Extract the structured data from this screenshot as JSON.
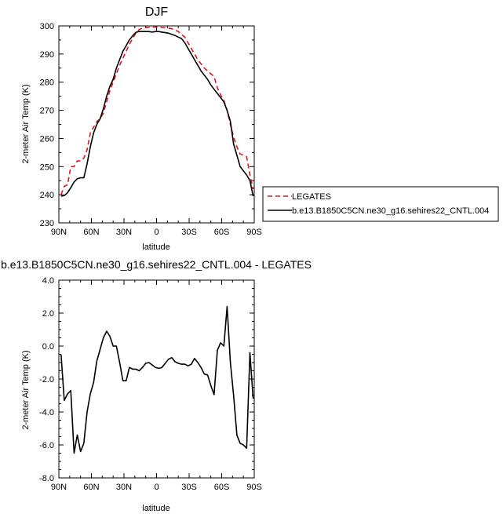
{
  "chart_data": [
    {
      "type": "line",
      "title": "DJF",
      "xlabel": "",
      "ylabel": "2-meter Air Temp (K)",
      "xlim": [
        90,
        -90
      ],
      "ylim": [
        230,
        300
      ],
      "x_ticks": [
        "90N",
        "60N",
        "30N",
        "0",
        "30S",
        "60S",
        "90S"
      ],
      "y_ticks": [
        "230",
        "240",
        "250",
        "260",
        "270",
        "280",
        "290",
        "300"
      ],
      "legend_position": "right",
      "series": [
        {
          "name": "LEGATES",
          "color": "#e0141e",
          "dash": "dashed",
          "x": [
            88,
            85,
            82,
            79,
            76,
            73,
            70,
            67,
            64,
            61,
            58,
            55,
            52,
            49,
            46,
            43,
            40,
            37,
            34,
            31,
            28,
            25,
            22,
            19,
            16,
            13,
            10,
            7,
            4,
            1,
            -2,
            -5,
            -8,
            -11,
            -14,
            -17,
            -20,
            -23,
            -26,
            -29,
            -32,
            -35,
            -38,
            -41,
            -44,
            -47,
            -50,
            -53,
            -56,
            -59,
            -62,
            -65,
            -68,
            -71,
            -74,
            -77,
            -80,
            -83,
            -86,
            -89
          ],
          "values": [
            240.0,
            243.0,
            243.5,
            250.0,
            250.0,
            252.0,
            252.0,
            253.0,
            256.0,
            262.0,
            264.0,
            266.0,
            267.0,
            269.0,
            273.0,
            277.0,
            280.0,
            283.0,
            286.0,
            288.5,
            291.0,
            293.5,
            295.5,
            297.5,
            298.7,
            299.2,
            299.4,
            299.5,
            299.5,
            299.6,
            299.5,
            299.4,
            299.3,
            299.2,
            299.0,
            298.5,
            298.0,
            297.0,
            296.0,
            294.0,
            292.0,
            290.0,
            288.0,
            286.5,
            285.0,
            284.0,
            283.0,
            282.0,
            278.0,
            275.5,
            273.5,
            270.0,
            265.0,
            260.5,
            257.0,
            254.5,
            254.0,
            253.5,
            247.0,
            242.0
          ]
        },
        {
          "name": "b.e13.B1850C5CN.ne30_g16.sehires22_CNTL.004",
          "color": "#000000",
          "dash": "solid",
          "x": [
            88,
            85,
            82,
            79,
            76,
            73,
            70,
            67,
            64,
            61,
            58,
            55,
            52,
            49,
            46,
            43,
            40,
            37,
            34,
            31,
            28,
            25,
            22,
            19,
            16,
            13,
            10,
            7,
            4,
            1,
            -2,
            -5,
            -8,
            -11,
            -14,
            -17,
            -20,
            -23,
            -26,
            -29,
            -32,
            -35,
            -38,
            -41,
            -44,
            -47,
            -50,
            -53,
            -56,
            -59,
            -62,
            -65,
            -68,
            -71,
            -74,
            -77,
            -80,
            -83,
            -86,
            -89
          ],
          "values": [
            239.5,
            239.7,
            240.7,
            242.5,
            244.5,
            245.7,
            246.0,
            246.0,
            251.0,
            257.0,
            262.0,
            265.0,
            267.0,
            270.5,
            275.0,
            278.5,
            281.0,
            285.0,
            288.0,
            291.0,
            293.0,
            295.0,
            296.5,
            297.7,
            298.0,
            298.0,
            298.0,
            298.0,
            297.8,
            298.0,
            298.0,
            297.8,
            297.6,
            297.4,
            297.0,
            296.6,
            296.0,
            295.5,
            294.0,
            292.0,
            290.0,
            288.0,
            286.0,
            284.0,
            282.5,
            281.0,
            279.0,
            277.5,
            276.0,
            274.5,
            273.0,
            270.0,
            266.0,
            258.0,
            254.0,
            250.0,
            248.5,
            247.0,
            245.0,
            239.5
          ]
        }
      ]
    },
    {
      "type": "line",
      "title": "b.e13.B1850C5CN.ne30_g16.sehires22_CNTL.004 - LEGATES",
      "xlabel": "latitude",
      "ylabel": "2-meter Air Temp (K)",
      "xlim": [
        90,
        -90
      ],
      "ylim": [
        -8,
        4
      ],
      "x_ticks": [
        "90N",
        "60N",
        "30N",
        "0",
        "30S",
        "60S",
        "90S"
      ],
      "y_ticks": [
        "-8.0",
        "-6.0",
        "-4.0",
        "-2.0",
        "0.0",
        "2.0",
        "4.0"
      ],
      "series": [
        {
          "color": "#000000",
          "x": [
            88,
            85,
            82,
            79,
            76,
            73,
            70,
            67,
            64,
            61,
            58,
            55,
            52,
            49,
            46,
            43,
            40,
            37,
            34,
            31,
            28,
            25,
            22,
            19,
            16,
            13,
            10,
            7,
            4,
            1,
            -2,
            -5,
            -8,
            -11,
            -14,
            -17,
            -20,
            -23,
            -26,
            -29,
            -32,
            -35,
            -38,
            -41,
            -44,
            -47,
            -50,
            -53,
            -56,
            -59,
            -62,
            -65,
            -68,
            -71,
            -74,
            -77,
            -80,
            -83,
            -86,
            -89
          ],
          "values": [
            -0.5,
            -3.3,
            -2.9,
            -2.7,
            -6.5,
            -5.4,
            -6.4,
            -5.9,
            -4.0,
            -2.9,
            -2.2,
            -0.9,
            -0.2,
            0.5,
            0.9,
            0.6,
            0.0,
            0.0,
            -1.0,
            -2.1,
            -2.1,
            -1.3,
            -1.4,
            -1.4,
            -1.5,
            -1.3,
            -1.05,
            -1.0,
            -1.15,
            -1.3,
            -1.35,
            -1.3,
            -1.05,
            -0.8,
            -0.7,
            -0.95,
            -1.05,
            -1.1,
            -1.1,
            -1.2,
            -1.1,
            -0.75,
            -1.0,
            -1.3,
            -1.7,
            -1.75,
            -2.4,
            -2.95,
            -0.25,
            0.2,
            0.0,
            2.4,
            -1.0,
            -3.0,
            -5.4,
            -5.9,
            -6.0,
            -6.2,
            -0.4,
            -3.2
          ]
        }
      ]
    }
  ]
}
